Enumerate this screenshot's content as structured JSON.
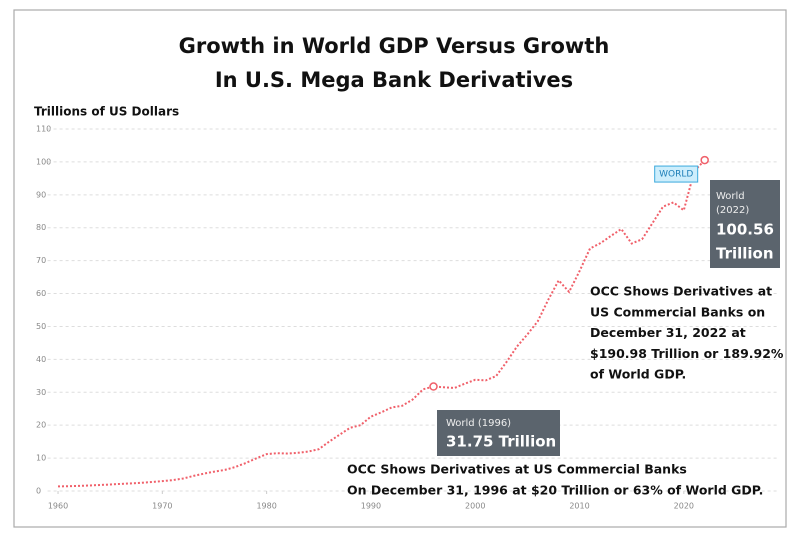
{
  "chart_data": {
    "type": "line",
    "title": [
      "Growth in World GDP Versus Growth",
      "In U.S. Mega Bank Derivatives"
    ],
    "y_label": "Trillions of US Dollars",
    "x": [
      1960,
      1961,
      1962,
      1963,
      1964,
      1965,
      1966,
      1967,
      1968,
      1969,
      1970,
      1971,
      1972,
      1973,
      1974,
      1975,
      1976,
      1977,
      1978,
      1979,
      1980,
      1981,
      1982,
      1983,
      1984,
      1985,
      1986,
      1987,
      1988,
      1989,
      1990,
      1991,
      1992,
      1993,
      1994,
      1995,
      1996,
      1997,
      1998,
      1999,
      2000,
      2001,
      2002,
      2003,
      2004,
      2005,
      2006,
      2007,
      2008,
      2009,
      2010,
      2011,
      2012,
      2013,
      2014,
      2015,
      2016,
      2017,
      2018,
      2019,
      2020,
      2021,
      2022
    ],
    "series": [
      {
        "name": "WORLD",
        "color": "#f0606a",
        "values": [
          1.4,
          1.45,
          1.55,
          1.67,
          1.83,
          1.99,
          2.16,
          2.3,
          2.48,
          2.73,
          3.0,
          3.3,
          3.8,
          4.6,
          5.3,
          5.9,
          6.4,
          7.3,
          8.5,
          9.9,
          11.2,
          11.5,
          11.4,
          11.6,
          12.0,
          12.7,
          15.0,
          17.1,
          19.2,
          20.0,
          22.6,
          23.9,
          25.4,
          25.9,
          27.8,
          30.9,
          31.75,
          31.5,
          31.3,
          32.6,
          33.8,
          33.6,
          34.9,
          39.2,
          43.9,
          47.6,
          51.6,
          58.1,
          64.0,
          60.5,
          66.8,
          73.7,
          75.3,
          77.5,
          79.6,
          75.2,
          76.5,
          81.4,
          86.4,
          87.7,
          85.3,
          97.2,
          100.56
        ]
      }
    ],
    "xlim": [
      1959,
      2029
    ],
    "xticks": [
      1960,
      1970,
      1980,
      1990,
      2000,
      2010,
      2020
    ],
    "ylim": [
      0,
      110
    ],
    "yticks": [
      0,
      10,
      20,
      30,
      40,
      50,
      60,
      70,
      80,
      90,
      100,
      110
    ],
    "grid": true,
    "tooltips": [
      {
        "index": 62,
        "label": "World (2022)",
        "value_text": [
          "100.56",
          "Trillion"
        ]
      },
      {
        "index": 36,
        "label": "World (1996)",
        "value_text": [
          "31.75 Trillion"
        ]
      }
    ],
    "annotations": [
      [
        "OCC Shows Derivatives at",
        "US Commercial Banks on",
        "December 31, 2022 at",
        "$190.98 Trillion or 189.92%",
        " of World GDP."
      ],
      [
        "OCC Shows Derivatives at US Commercial Banks",
        "On December 31, 1996 at $20 Trillion or 63% of World GDP."
      ]
    ]
  }
}
